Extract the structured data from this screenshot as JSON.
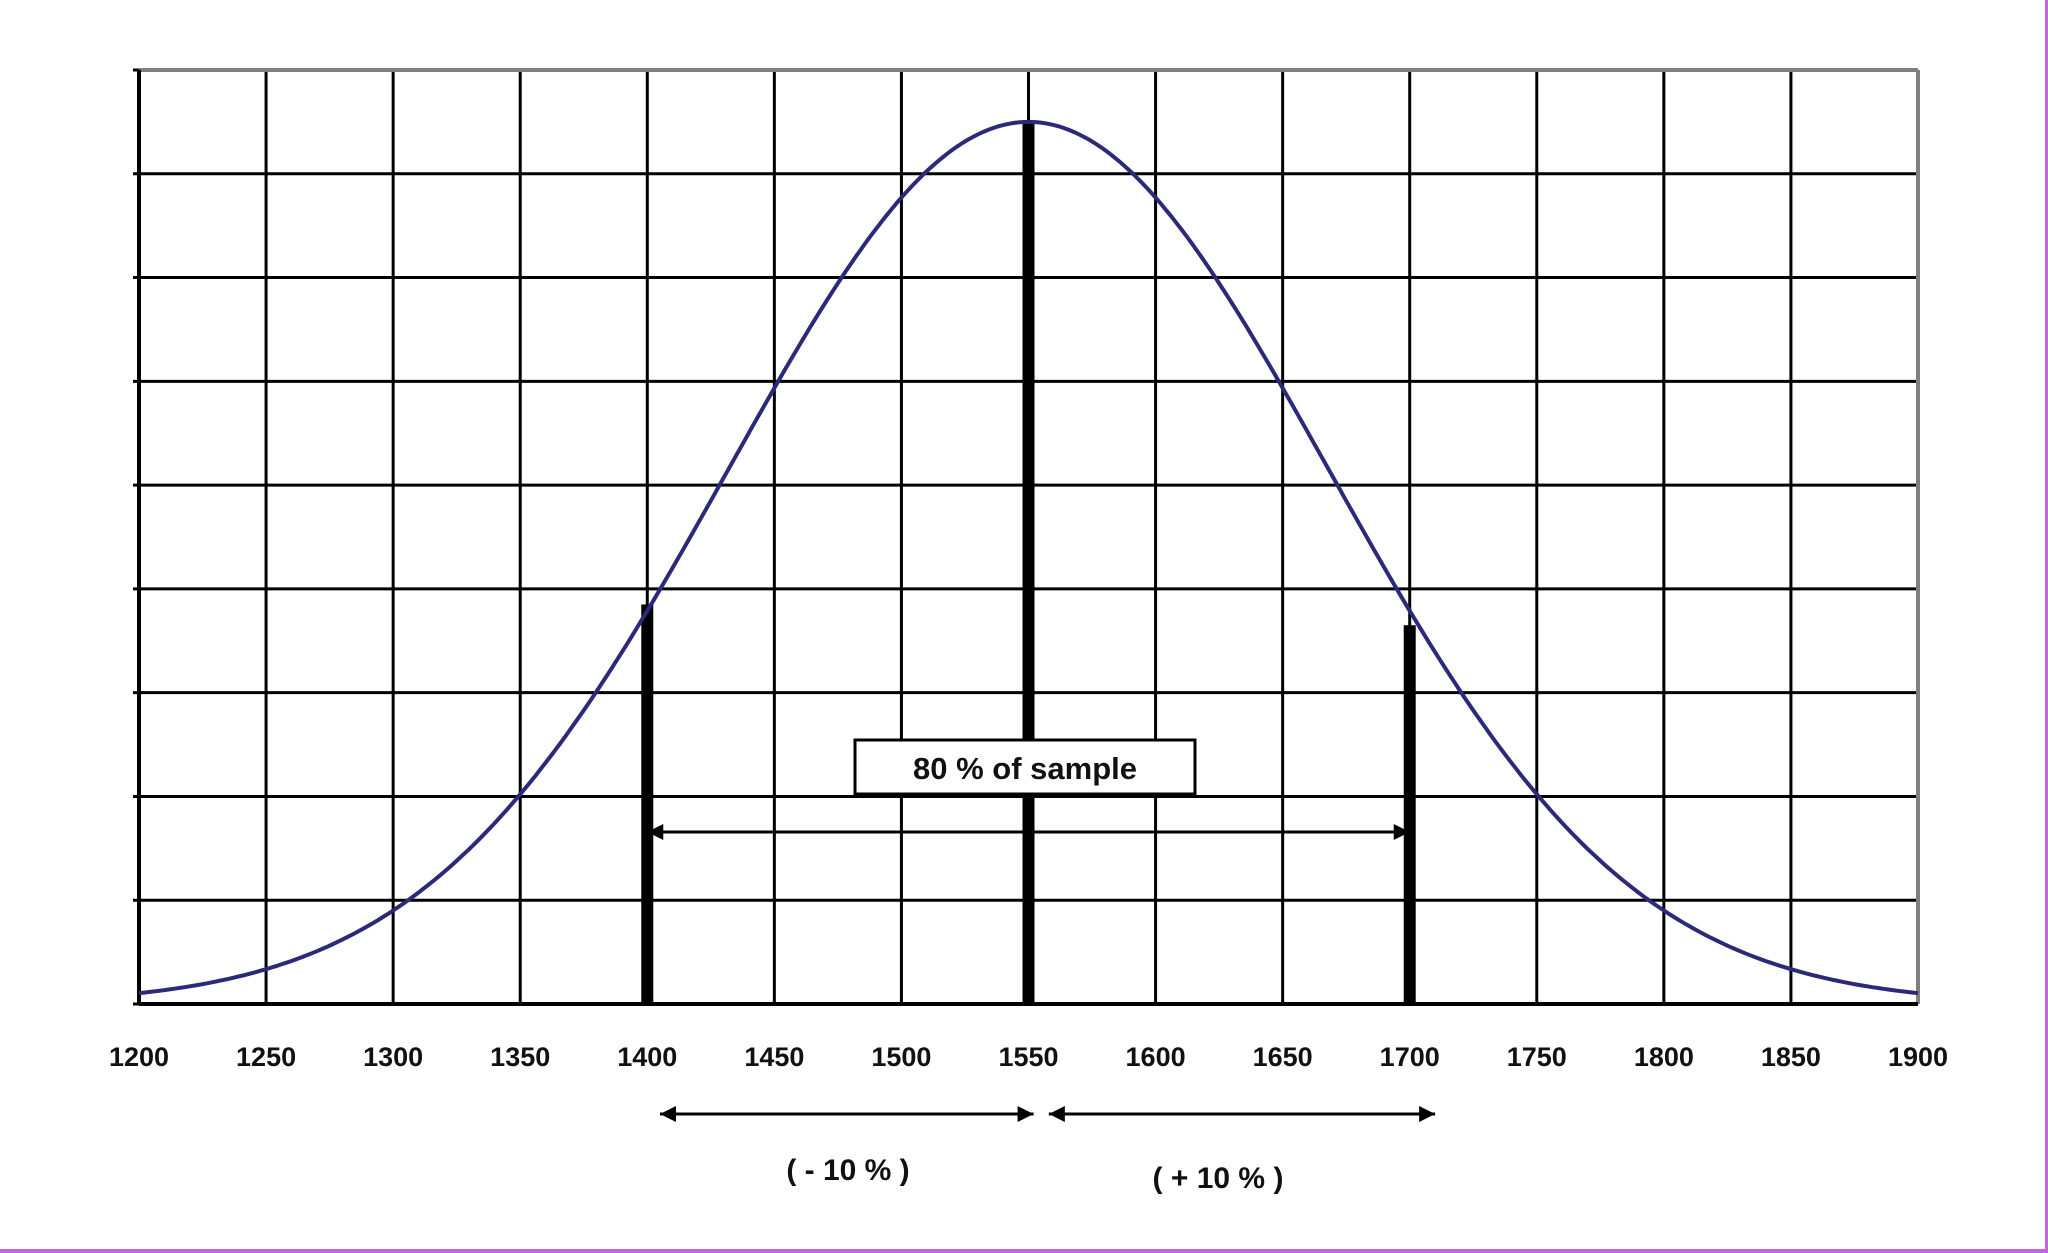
{
  "chart_data": {
    "type": "line",
    "title": "",
    "xlabel": "",
    "ylabel": "",
    "xlim": [
      1200,
      1900
    ],
    "ylim": [
      0,
      9
    ],
    "grid": true,
    "x_ticks": [
      "1200",
      "1250",
      "1300",
      "1350",
      "1400",
      "1450",
      "1500",
      "1550",
      "1600",
      "1650",
      "1700",
      "1750",
      "1800",
      "1850",
      "1900"
    ],
    "distribution": {
      "kind": "normal",
      "mean": 1550,
      "sd": 118,
      "peak": 8.5
    },
    "markers": [
      {
        "x": 1400,
        "height": 3.85
      },
      {
        "x": 1550,
        "height": 8.5
      },
      {
        "x": 1700,
        "height": 3.65
      }
    ],
    "annotations": {
      "box_label": "80 % of sample",
      "range_inner": [
        1400,
        1700
      ],
      "left_range": [
        1405,
        1552
      ],
      "right_range": [
        1558,
        1710
      ],
      "left_label": "( - 10 % )",
      "right_label": "( + 10 % )"
    },
    "colors": {
      "curve": "#2c2a78",
      "grid": "#000000",
      "frame": "#808080"
    }
  }
}
